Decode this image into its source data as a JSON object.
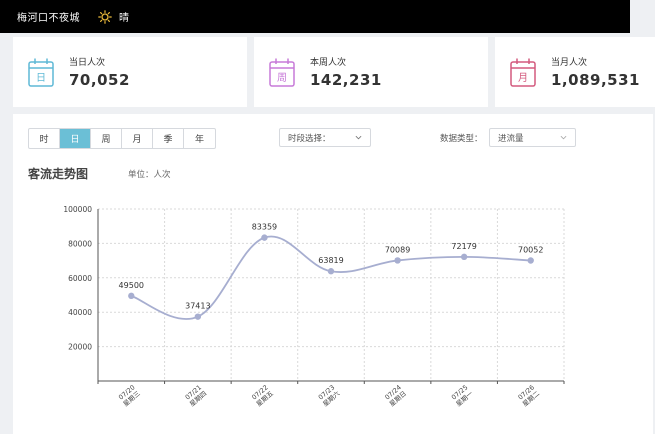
{
  "header": {
    "site_name": "梅河口不夜城",
    "weather": "晴",
    "weather_icon": "sun-icon"
  },
  "stats": [
    {
      "icon_char": "日",
      "label": "当日人次",
      "value": "70,052",
      "color": "#5fb9d6"
    },
    {
      "icon_char": "周",
      "label": "本周人次",
      "value": "142,231",
      "color": "#c77ad8"
    },
    {
      "icon_char": "月",
      "label": "当月人次",
      "value": "1,089,531",
      "color": "#d35a7e"
    }
  ],
  "filters": {
    "tabs": [
      "时",
      "日",
      "周",
      "月",
      "季",
      "年"
    ],
    "active_tab": "日",
    "period_label": "时段选择：",
    "type_label": "数据类型：",
    "type_value": "进流量"
  },
  "chart_title": "客流走势图",
  "unit_label": "单位：人次",
  "chart_data": {
    "type": "line",
    "title": "客流走势图",
    "x": [
      "07/20 星期三",
      "07/21 星期四",
      "07/22 星期五",
      "07/23 星期六",
      "07/24 星期日",
      "07/25 星期一",
      "07/26 星期二"
    ],
    "x_dates": [
      "07/20",
      "07/21",
      "07/22",
      "07/23",
      "07/24",
      "07/25",
      "07/26"
    ],
    "x_days": [
      "星期三",
      "星期四",
      "星期五",
      "星期六",
      "星期日",
      "星期一",
      "星期二"
    ],
    "series": [
      {
        "values": [
          49500,
          37413,
          83359,
          63819,
          70089,
          72179,
          70052
        ]
      }
    ],
    "ylim": [
      0,
      100000
    ],
    "yticks": [
      20000,
      40000,
      60000,
      80000,
      100000
    ],
    "grid": true,
    "smooth": true,
    "line_color": "#a7aed0"
  }
}
